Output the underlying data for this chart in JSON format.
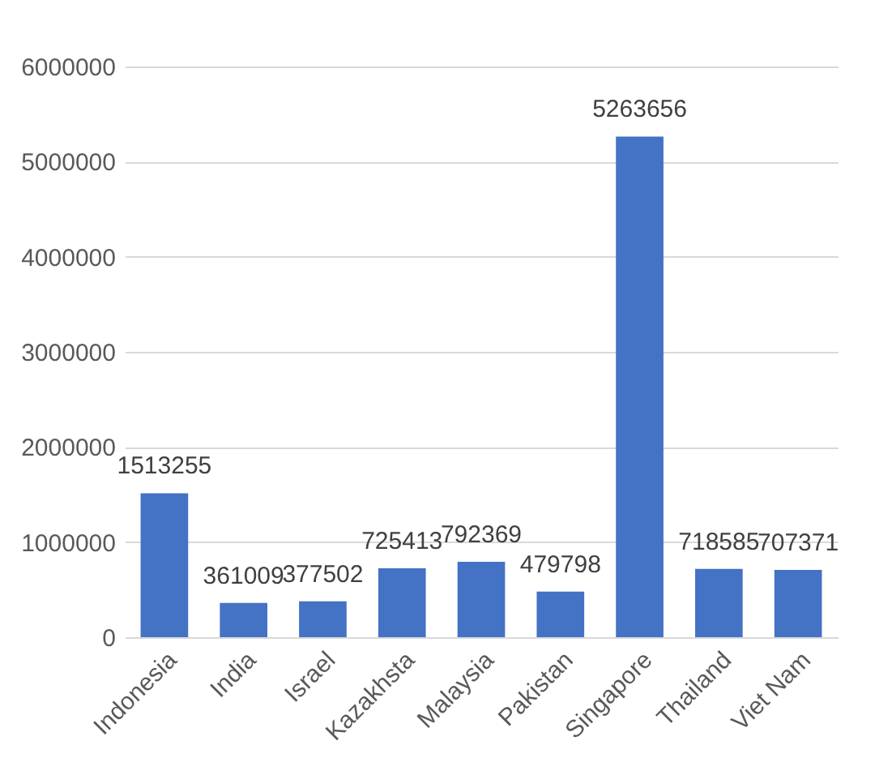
{
  "chart_data": {
    "type": "bar",
    "categories": [
      "Indonesia",
      "India",
      "Israel",
      "Kazakhsta",
      "Malaysia",
      "Pakistan",
      "Singapore",
      "Thailand",
      "Viet Nam"
    ],
    "values": [
      1513255,
      361009,
      377502,
      725413,
      792369,
      479798,
      5263656,
      718585,
      707371
    ],
    "color": "#4472c4",
    "ylim": [
      0,
      6000000
    ],
    "yticks": [
      0,
      1000000,
      2000000,
      3000000,
      4000000,
      5000000,
      6000000
    ],
    "grid": "y",
    "data_labels": true
  }
}
